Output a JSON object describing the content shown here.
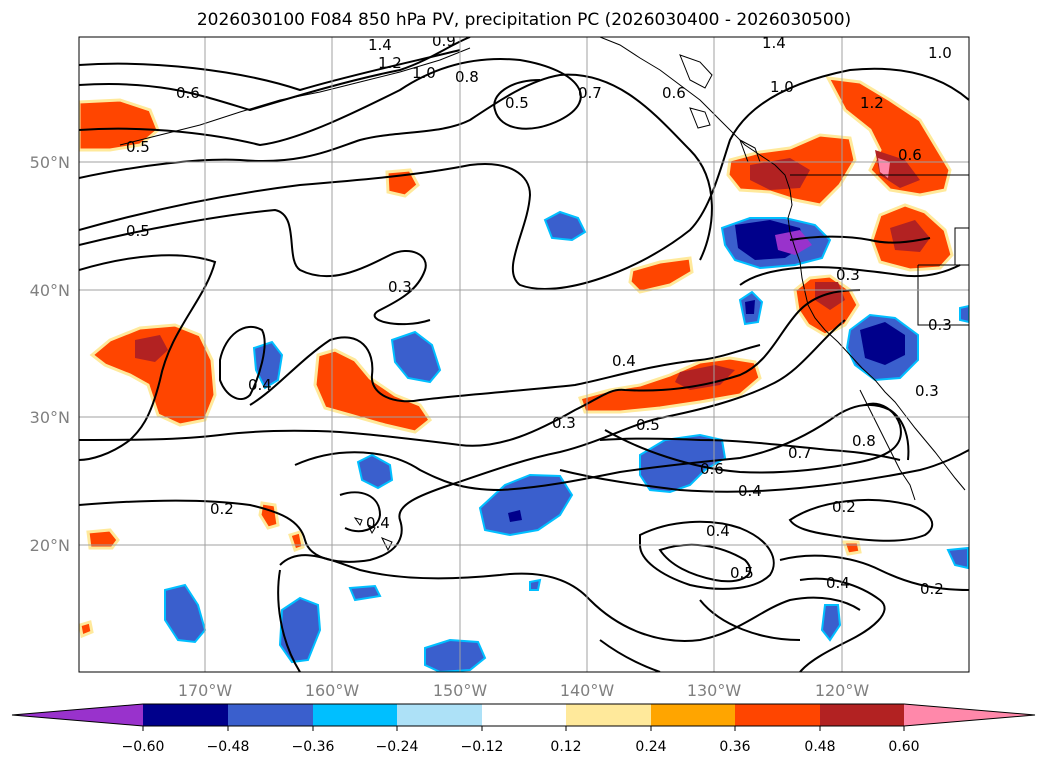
{
  "title": "2026030100 F084 850 hPa PV, precipitation PC (2026030400 - 2026030500)",
  "colors": {
    "c_neg060": "#9932CC",
    "c_neg048": "#00008B",
    "c_neg036": "#3A5FCD",
    "c_neg024": "#00BFFF",
    "c_neg012": "#ADE1F7",
    "c_zero": "#FFFFFF",
    "c_pos012": "#FFE99B",
    "c_pos024": "#FFA500",
    "c_pos036": "#FF4500",
    "c_pos048": "#B22222",
    "c_pos060": "#FF88AA"
  },
  "map": {
    "lat_labels": [
      "50°N",
      "40°N",
      "30°N",
      "20°N"
    ],
    "lon_labels": [
      "170°W",
      "160°W",
      "150°W",
      "140°W",
      "130°W",
      "120°W"
    ],
    "contour_labels": [
      "1.4",
      "1.2",
      "0.9",
      "1.0",
      "0.8",
      "0.6",
      "0.5",
      "0.5",
      "0.7",
      "0.6",
      "1.4",
      "1.0",
      "1.0",
      "1.2",
      "0.6",
      "0.5",
      "0.3",
      "0.3",
      "0.3",
      "0.4",
      "0.4",
      "0.3",
      "0.5",
      "0.6",
      "0.7",
      "0.4",
      "0.8",
      "0.3",
      "0.2",
      "0.4",
      "0.2",
      "0.4",
      "0.5",
      "0.4",
      "0.2"
    ]
  },
  "colorbar": {
    "tick_labels": [
      "−0.60",
      "−0.48",
      "−0.36",
      "−0.24",
      "−0.12",
      "0.12",
      "0.24",
      "0.36",
      "0.48",
      "0.60"
    ]
  }
}
